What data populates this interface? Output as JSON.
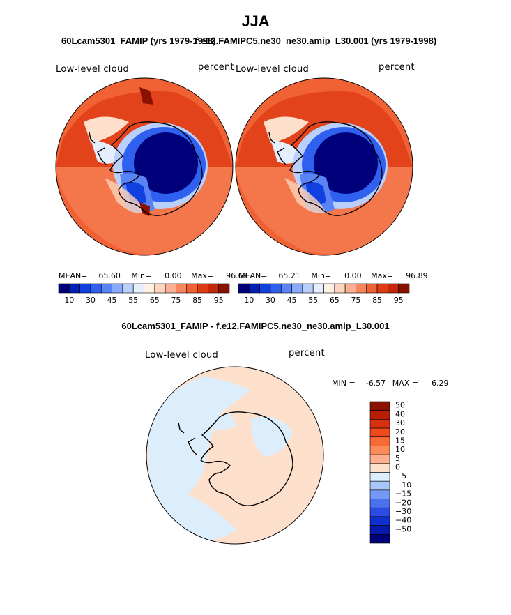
{
  "figure": {
    "title": "JJA",
    "left_subtitle": "60Lcam5301_FAMIP (yrs 1979-1998)",
    "right_subtitle": "f.e12.FAMIPC5.ne30_ne30.amip_L30.001 (yrs 1979-1998)",
    "diff_subtitle": "60Lcam5301_FAMIP - f.e12.FAMIPC5.ne30_ne30.amip_L30.001"
  },
  "chart_data": [
    {
      "type": "heatmap",
      "projection": "south-polar-stereographic",
      "variable": "Low-level cloud",
      "units": "percent",
      "stats": {
        "mean": "65.60",
        "min": "0.00",
        "max": "96.69"
      },
      "stats_labels": {
        "mean": "MEAN=",
        "min": "Min=",
        "max": "Max="
      },
      "colorbar_ticks": [
        "10",
        "30",
        "45",
        "55",
        "65",
        "75",
        "85",
        "95"
      ],
      "colorbar_colors": [
        "#00007a",
        "#0020b8",
        "#1040e0",
        "#3060f0",
        "#5a84f5",
        "#88aaf8",
        "#b8d0fb",
        "#e4eefd",
        "#fff0e4",
        "#fdd4bc",
        "#fbb094",
        "#f7865e",
        "#f06234",
        "#e03c14",
        "#c42808",
        "#8a1000"
      ]
    },
    {
      "type": "heatmap",
      "projection": "south-polar-stereographic",
      "variable": "Low-level cloud",
      "units": "percent",
      "stats": {
        "mean": "65.21",
        "min": "0.00",
        "max": "96.89"
      },
      "stats_labels": {
        "mean": "MEAN=",
        "min": "Min=",
        "max": "Max="
      },
      "colorbar_ticks": [
        "10",
        "30",
        "45",
        "55",
        "65",
        "75",
        "85",
        "95"
      ],
      "colorbar_colors": [
        "#00007a",
        "#0020b8",
        "#1040e0",
        "#3060f0",
        "#5a84f5",
        "#88aaf8",
        "#b8d0fb",
        "#e4eefd",
        "#fff0e4",
        "#fdd4bc",
        "#fbb094",
        "#f7865e",
        "#f06234",
        "#e03c14",
        "#c42808",
        "#8a1000"
      ]
    },
    {
      "type": "heatmap",
      "projection": "south-polar-stereographic",
      "variable": "Low-level cloud",
      "units": "percent",
      "stats": {
        "min": "-6.57",
        "max": "6.29"
      },
      "stats_labels": {
        "min": "MIN =",
        "max": "MAX ="
      },
      "colorbar_ticks": [
        "50",
        "40",
        "30",
        "20",
        "15",
        "10",
        "5",
        "0",
        "−5",
        "−10",
        "−15",
        "−20",
        "−30",
        "−40",
        "−50"
      ],
      "colorbar_colors": [
        "#8a1000",
        "#b81e04",
        "#d83010",
        "#f04a1c",
        "#f86a34",
        "#fa8c5a",
        "#fcb090",
        "#fde0cc",
        "#dceefc",
        "#a8c6f8",
        "#7498f4",
        "#4a70ee",
        "#2a4ce4",
        "#1030cc",
        "#0818a8",
        "#00007a"
      ]
    }
  ]
}
